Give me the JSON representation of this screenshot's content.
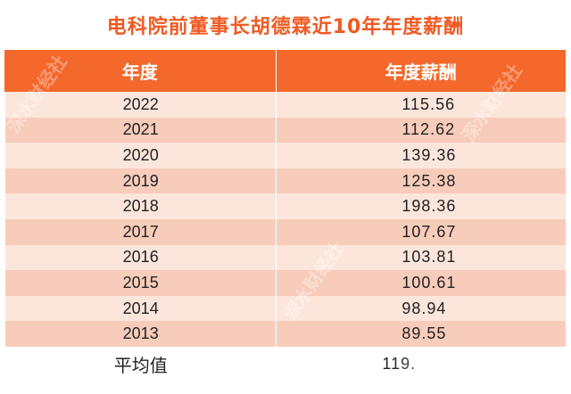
{
  "title": "电科院前董事长胡德霖近10年年度薪酬",
  "header": {
    "col1": "年度",
    "col2": "年度薪酬"
  },
  "rows": [
    {
      "year": "2022",
      "pay": "115.56"
    },
    {
      "year": "2021",
      "pay": "112.62"
    },
    {
      "year": "2020",
      "pay": "139.36"
    },
    {
      "year": "2019",
      "pay": "125.38"
    },
    {
      "year": "2018",
      "pay": "198.36"
    },
    {
      "year": "2017",
      "pay": "107.67"
    },
    {
      "year": "2016",
      "pay": "103.81"
    },
    {
      "year": "2015",
      "pay": "100.61"
    },
    {
      "year": "2014",
      "pay": "98.94"
    },
    {
      "year": "2013",
      "pay": "89.55"
    }
  ],
  "footer": {
    "label": "平均值",
    "value": "119."
  },
  "watermarks": [
    "深水财经社",
    "深水财经社",
    "深水财经社"
  ],
  "colors": {
    "accent": "#f4682b",
    "title": "#f05a22",
    "row_light": "#fce6dc",
    "row_dark": "#f8ccba"
  }
}
